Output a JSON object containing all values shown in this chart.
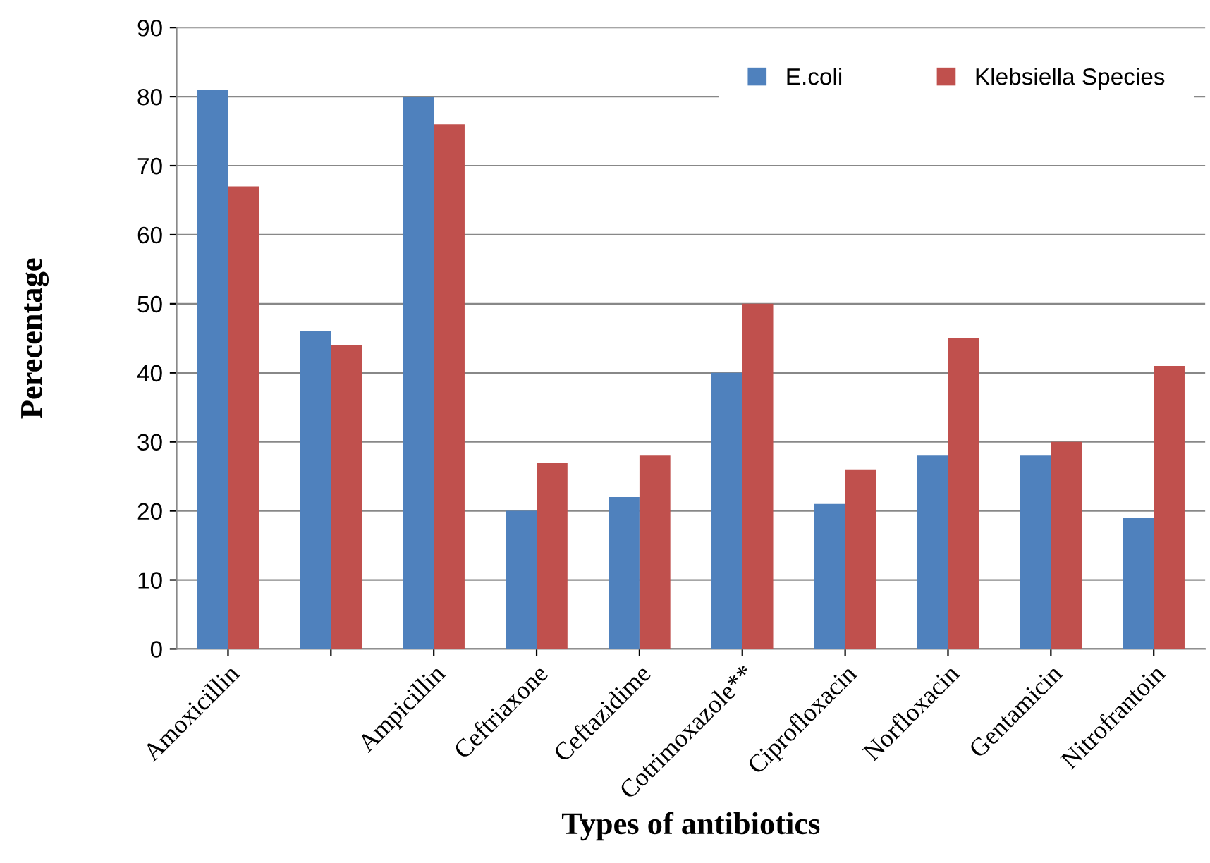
{
  "chart_data": {
    "type": "bar",
    "xlabel": "Types of antibiotics",
    "ylabel": "Perecentage",
    "categories": [
      "Amoxicillin",
      null,
      "Ampicillin",
      "Ceftriaxone",
      "Ceftazidime",
      "Cotrimoxazole**",
      "Ciprofloxacin",
      "Norfloxacin",
      "Gentamicin",
      "Nitrofrantoin"
    ],
    "series": [
      {
        "name": "E.coli",
        "color": "#4f81bd",
        "values": [
          81,
          46,
          80,
          20,
          22,
          40,
          21,
          28,
          28,
          19
        ]
      },
      {
        "name": "Klebsiella Species",
        "color": "#c0504d",
        "values": [
          67,
          44,
          76,
          27,
          28,
          50,
          26,
          45,
          30,
          41
        ]
      }
    ],
    "ylim": [
      0,
      90
    ],
    "yticks": [
      0,
      10,
      20,
      30,
      40,
      50,
      60,
      70,
      80,
      90
    ],
    "grid": "y",
    "legend": "top right"
  }
}
